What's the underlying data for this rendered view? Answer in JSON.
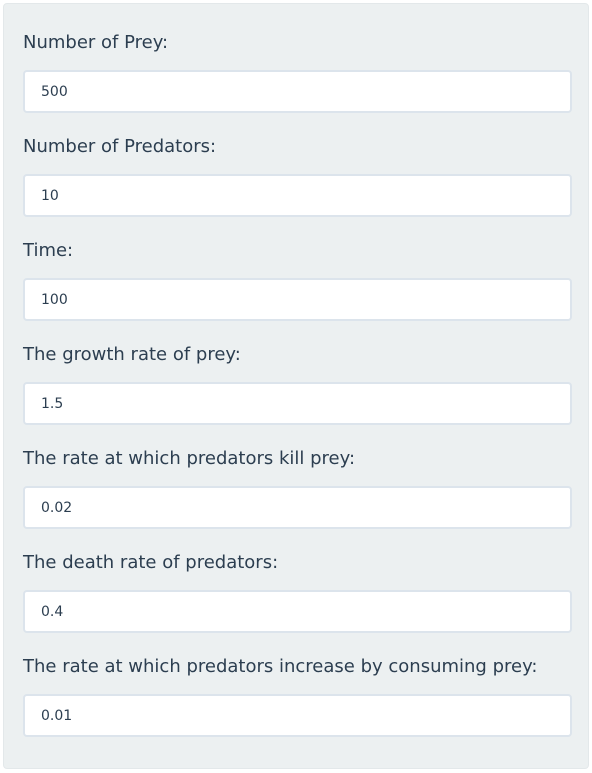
{
  "form": {
    "fields": [
      {
        "label": "Number of Prey:",
        "value": "500"
      },
      {
        "label": "Number of Predators:",
        "value": "10"
      },
      {
        "label": "Time:",
        "value": "100"
      },
      {
        "label": "The growth rate of prey:",
        "value": "1.5"
      },
      {
        "label": "The rate at which predators kill prey:",
        "value": "0.02"
      },
      {
        "label": "The death rate of predators:",
        "value": "0.4"
      },
      {
        "label": "The rate at which predators increase by consuming prey:",
        "value": "0.01"
      }
    ]
  }
}
